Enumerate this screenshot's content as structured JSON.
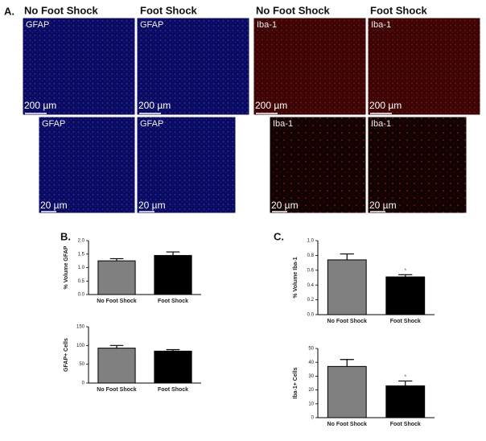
{
  "panels": [
    "A.",
    "B.",
    "C."
  ],
  "headers": [
    "No Foot Shock",
    "Foot Shock",
    "No Foot Shock",
    "Foot Shock"
  ],
  "images": [
    {
      "label": "GFAP",
      "scale": "200 µm"
    },
    {
      "label": "GFAP",
      "scale": "200 µm"
    },
    {
      "label": "Iba-1",
      "scale": "200 µm"
    },
    {
      "label": "Iba-1",
      "scale": "200 µm"
    },
    {
      "label": "GFAP",
      "scale": "20 µm"
    },
    {
      "label": "GFAP",
      "scale": "20 µm"
    },
    {
      "label": "Iba-1",
      "scale": "20 µm"
    },
    {
      "label": "Iba-1",
      "scale": "20 µm"
    }
  ],
  "chart_data": [
    {
      "type": "bar",
      "ylabel": "% Volume GFAP",
      "categories": [
        "No Foot Shock",
        "Foot Shock"
      ],
      "values": [
        1.25,
        1.45
      ],
      "errors": [
        0.08,
        0.13
      ],
      "colors": [
        "#808080",
        "#000000"
      ],
      "ylim": [
        0,
        2
      ],
      "yticks": [
        {
          "value": 0,
          "label": "0.0"
        },
        {
          "value": 0.5,
          "label": "0.5"
        },
        {
          "value": 1,
          "label": "1.0"
        },
        {
          "value": 1.5,
          "label": "1.5"
        },
        {
          "value": 2,
          "label": "2.0"
        }
      ]
    },
    {
      "type": "bar",
      "ylabel": "GFAP+ Cells",
      "categories": [
        "No Foot Shock",
        "Foot Shock"
      ],
      "values": [
        93,
        85
      ],
      "errors": [
        7,
        4
      ],
      "colors": [
        "#808080",
        "#000000"
      ],
      "ylim": [
        0,
        150
      ],
      "yticks": [
        0,
        50,
        100,
        150
      ]
    },
    {
      "type": "bar",
      "ylabel": "% Volume Iba-1",
      "categories": [
        "No Foot Shock",
        "Foot Shock"
      ],
      "values": [
        0.74,
        0.51
      ],
      "errors": [
        0.08,
        0.03
      ],
      "colors": [
        "#808080",
        "#000000"
      ],
      "value_annotations": [
        null,
        "*"
      ],
      "ylim": [
        0,
        1
      ],
      "yticks": [
        {
          "value": 0,
          "label": "0.0"
        },
        {
          "value": 0.2,
          "label": "0.2"
        },
        {
          "value": 0.4,
          "label": "0.4"
        },
        {
          "value": 0.6,
          "label": "0.6"
        },
        {
          "value": 0.8,
          "label": "0.8"
        },
        {
          "value": 1,
          "label": "1.0"
        }
      ]
    },
    {
      "type": "bar",
      "ylabel": "Iba-1+ Cells",
      "categories": [
        "No Foot Shock",
        "Foot Shock"
      ],
      "values": [
        37,
        23
      ],
      "errors": [
        5,
        3.5
      ],
      "colors": [
        "#808080",
        "#000000"
      ],
      "value_annotations": [
        null,
        "*"
      ],
      "ylim": [
        0,
        50
      ],
      "yticks": [
        0,
        10,
        20,
        30,
        40,
        50
      ]
    }
  ]
}
